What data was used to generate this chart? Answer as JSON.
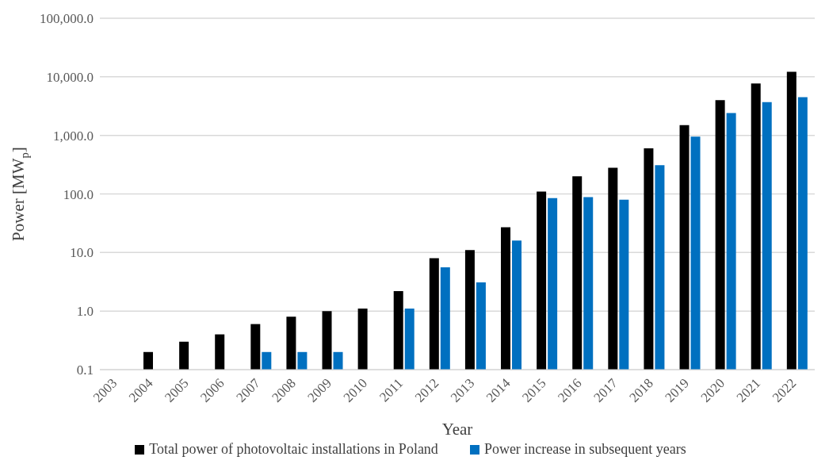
{
  "chart_data": {
    "type": "bar",
    "xlabel": "Year",
    "ylabel": "Power [MW$_{p}$]",
    "categories": [
      "2003",
      "2004",
      "2005",
      "2006",
      "2007",
      "2008",
      "2009",
      "2010",
      "2011",
      "2012",
      "2013",
      "2014",
      "2015",
      "2016",
      "2017",
      "2018",
      "2019",
      "2020",
      "2021",
      "2022"
    ],
    "series": [
      {
        "name": "Total power of photovoltaic installations in Poland",
        "color": "#000000",
        "values": [
          null,
          0.2,
          0.3,
          0.4,
          0.6,
          0.8,
          1.0,
          1.1,
          2.2,
          8,
          11,
          27,
          110,
          200,
          280,
          600,
          1500,
          4000,
          7700,
          12200
        ]
      },
      {
        "name": "Power increase in subsequent years",
        "color": "#0070c0",
        "values": [
          null,
          null,
          null,
          null,
          0.2,
          0.2,
          0.2,
          null,
          1.1,
          5.6,
          3.1,
          16,
          85,
          88,
          80,
          310,
          950,
          2400,
          3700,
          4500
        ]
      }
    ],
    "log": "y",
    "ylim": [
      0.1,
      100000
    ],
    "yticks": [
      {
        "value": 0.1,
        "label": "0.1"
      },
      {
        "value": 1,
        "label": "1.0"
      },
      {
        "value": 10,
        "label": "10.0"
      },
      {
        "value": 100,
        "label": "100.0"
      },
      {
        "value": 1000,
        "label": "1,000.0"
      },
      {
        "value": 10000,
        "label": "10,000.0"
      },
      {
        "value": 100000,
        "label": "100,000.0"
      }
    ],
    "grid": "y",
    "legend": "bottom"
  }
}
